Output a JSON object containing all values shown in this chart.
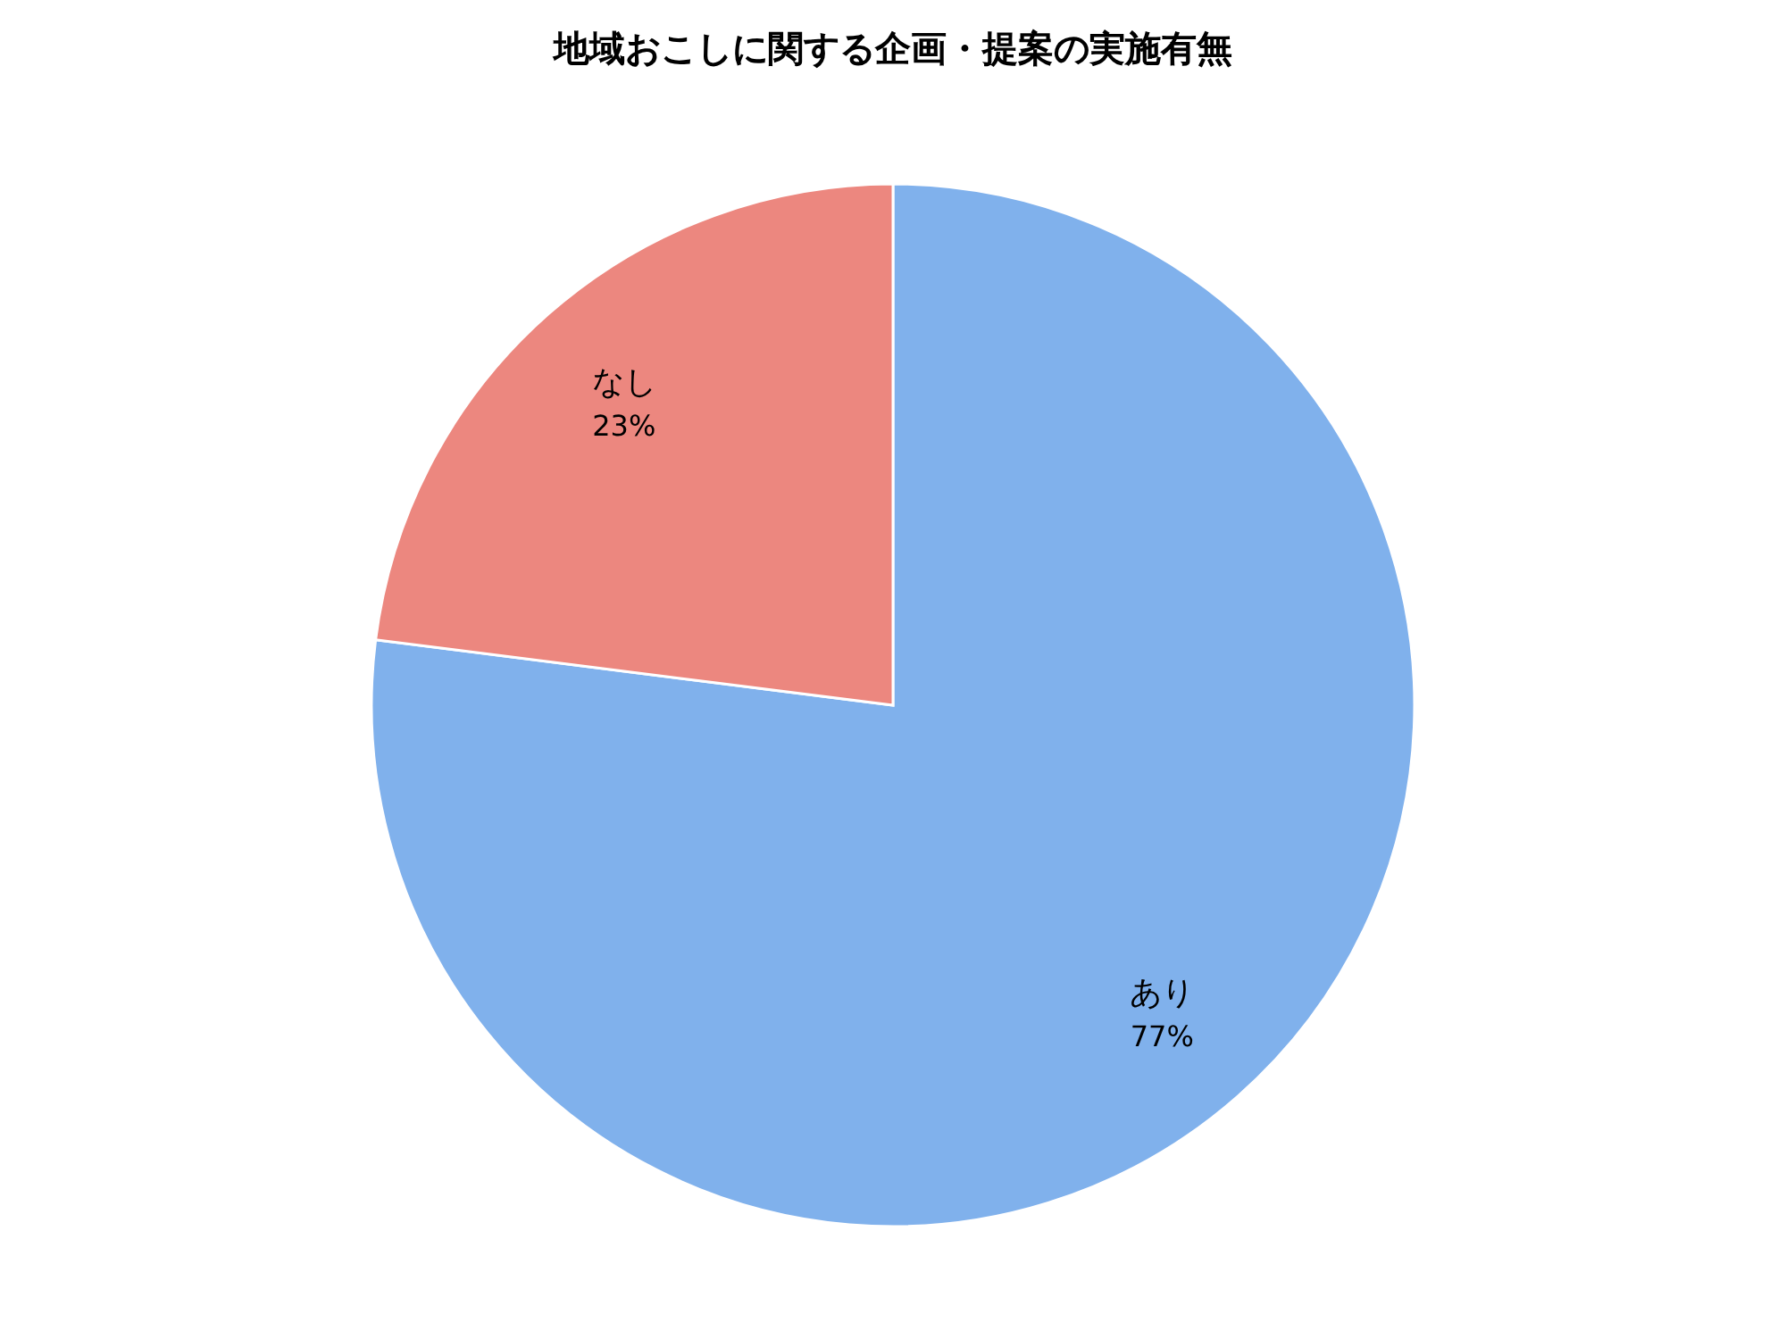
{
  "chart_data": {
    "type": "pie",
    "title": "地域おこしに関する企画・提案の実施有無",
    "categories": [
      "あり",
      "なし"
    ],
    "values": [
      77,
      23
    ],
    "colors": [
      "#80b1ec",
      "#ec877f"
    ],
    "value_labels": [
      "77%",
      "23%"
    ],
    "legend": false
  }
}
